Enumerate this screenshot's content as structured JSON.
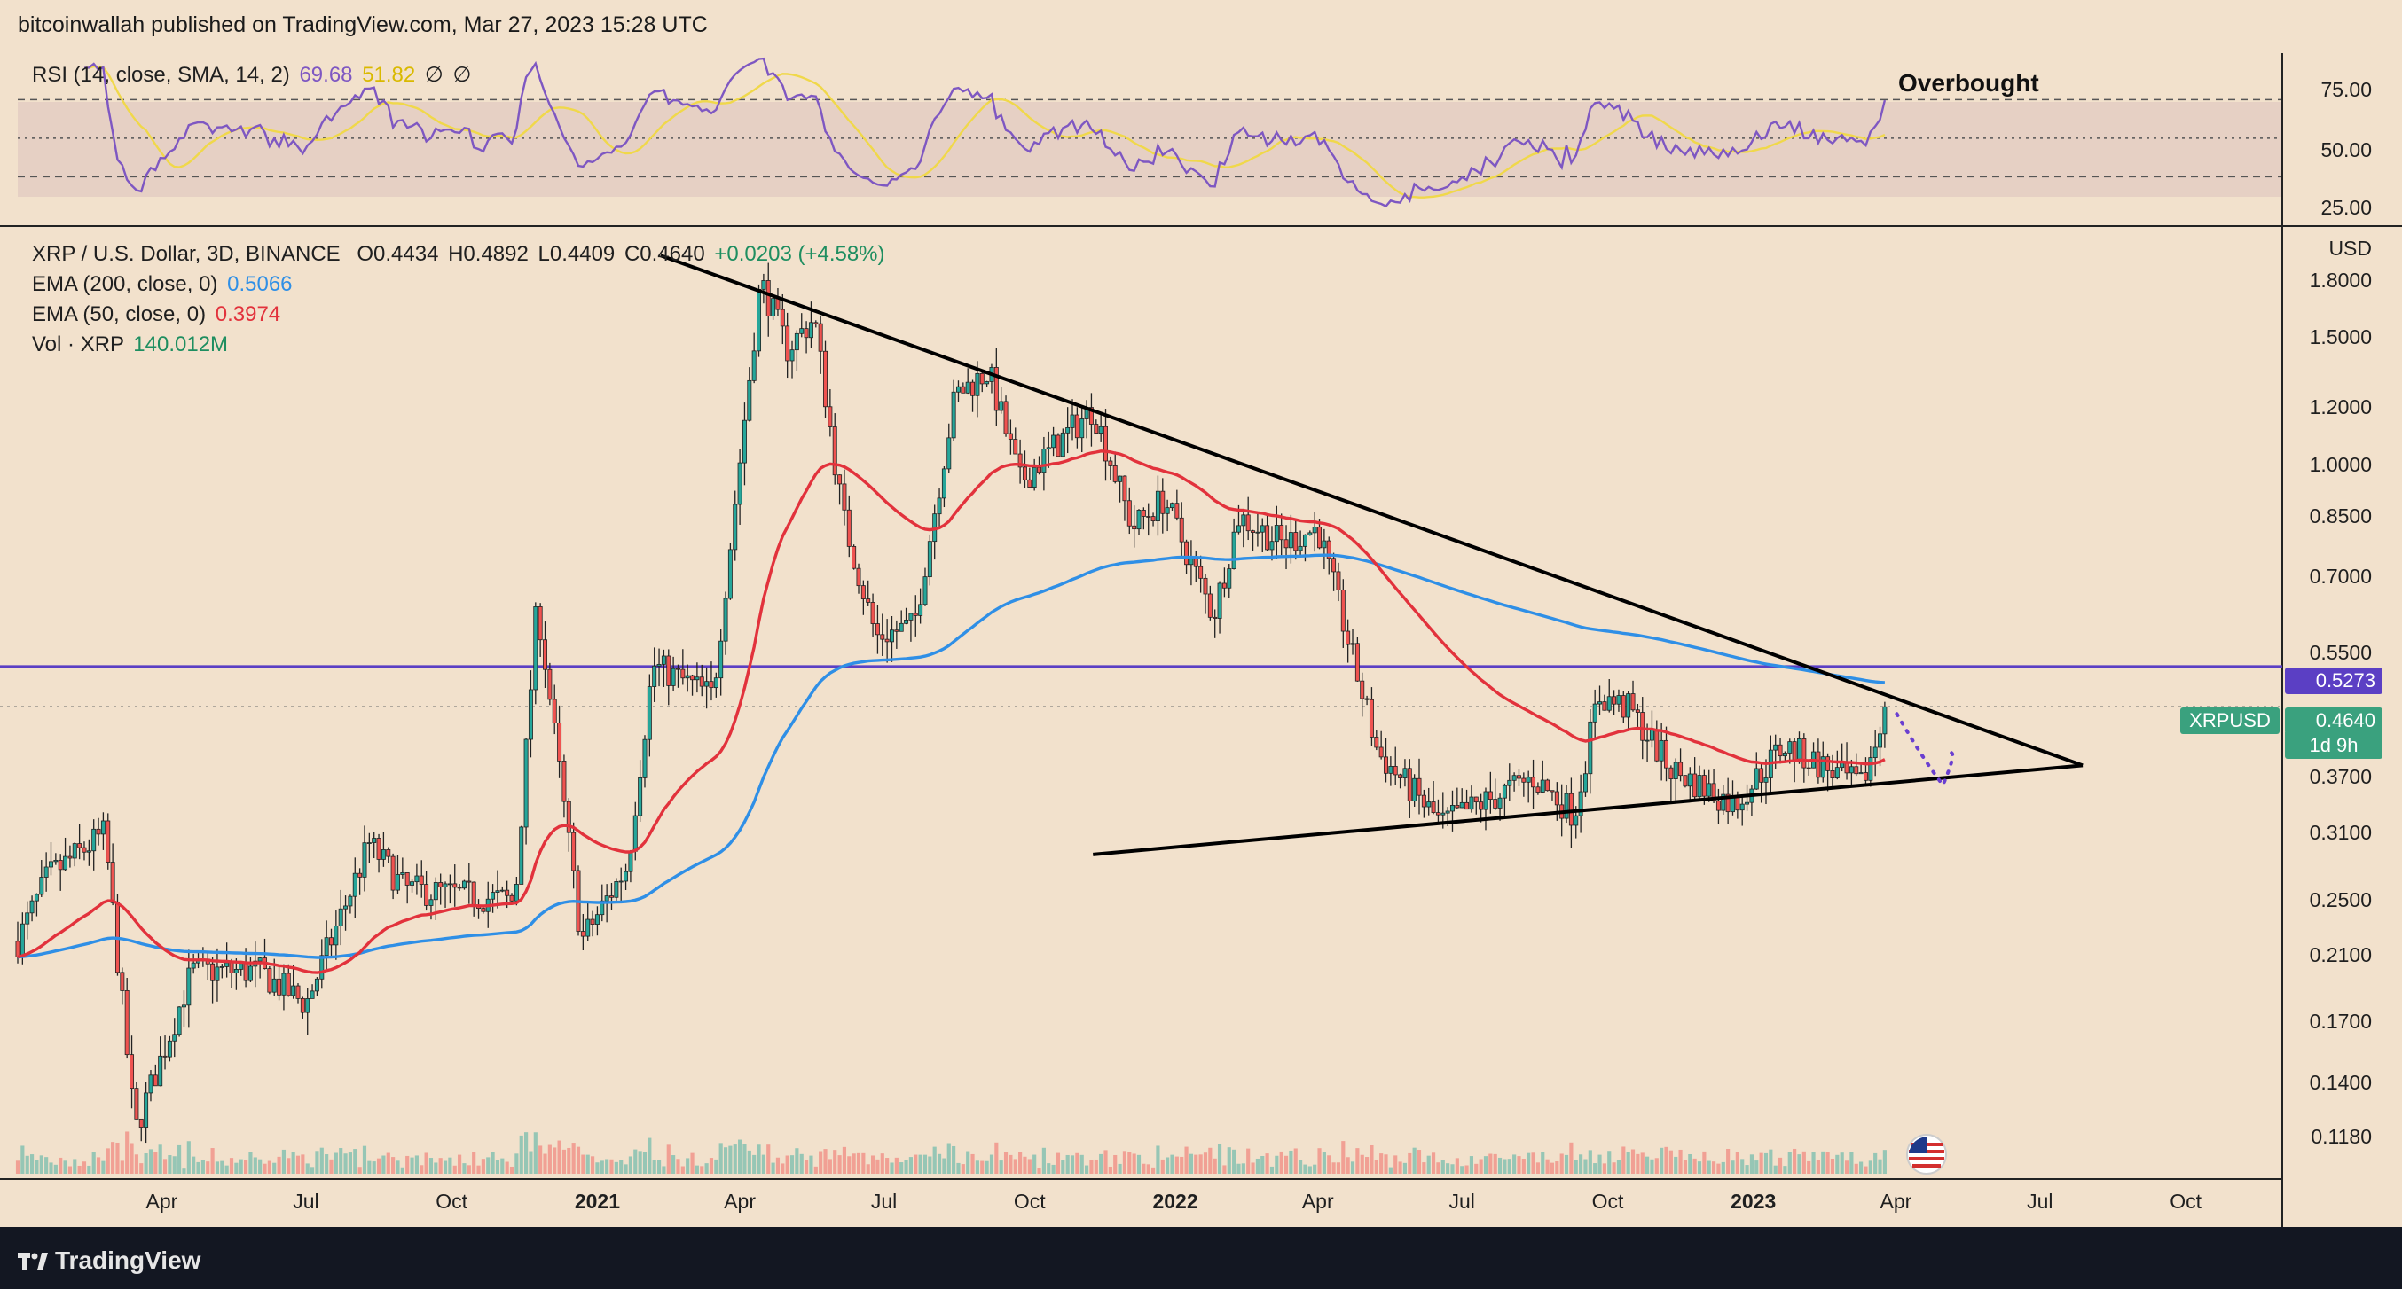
{
  "header": {
    "publisher": "bitcoinwallah published on TradingView.com, Mar 27, 2023 15:28 UTC"
  },
  "rsi_legend": {
    "label": "RSI (14, close, SMA, 14, 2)",
    "rsi": "69.68",
    "sma": "51.82",
    "sym1": "∅",
    "sym2": "∅"
  },
  "main_legend": {
    "pair": "XRP / U.S. Dollar, 3D, BINANCE",
    "open": "O0.4434",
    "high": "H0.4892",
    "low": "L0.4409",
    "close": "C0.4640",
    "change": "+0.0203 (+4.58%)"
  },
  "ema200": {
    "label": "EMA (200, close, 0)",
    "value": "0.5066"
  },
  "ema50": {
    "label": "EMA (50, close, 0)",
    "value": "0.3974"
  },
  "vol": {
    "label": "Vol · XRP",
    "value": "140.012M"
  },
  "annotation": {
    "overbought": "Overbought"
  },
  "rsi_axis": [
    "75.00",
    "50.00",
    "25.00"
  ],
  "price_axis": {
    "currency": "USD",
    "ticks": [
      "1.8000",
      "1.5000",
      "1.2000",
      "1.0000",
      "0.8500",
      "0.7000",
      "0.5500",
      "0.3700",
      "0.3100",
      "0.2500",
      "0.2100",
      "0.1700",
      "0.1400",
      "0.1180"
    ]
  },
  "tags": {
    "level": "0.5273",
    "symbol": "XRPUSD",
    "price": "0.4640",
    "countdown": "1d 9h"
  },
  "time_axis": [
    {
      "label": "Apr",
      "year": false
    },
    {
      "label": "Jul",
      "year": false
    },
    {
      "label": "Oct",
      "year": false
    },
    {
      "label": "2021",
      "year": true
    },
    {
      "label": "Apr",
      "year": false
    },
    {
      "label": "Jul",
      "year": false
    },
    {
      "label": "Oct",
      "year": false
    },
    {
      "label": "2022",
      "year": true
    },
    {
      "label": "Apr",
      "year": false
    },
    {
      "label": "Jul",
      "year": false
    },
    {
      "label": "Oct",
      "year": false
    },
    {
      "label": "2023",
      "year": true
    },
    {
      "label": "Apr",
      "year": false
    },
    {
      "label": "Jul",
      "year": false
    },
    {
      "label": "Oct",
      "year": false
    }
  ],
  "footer": {
    "brand": "TradingView"
  },
  "colors": {
    "background": "#f2e1cc",
    "up": "#26a69a",
    "down": "#ef5350",
    "ema200": "#2f8fe6",
    "ema50": "#e2323c",
    "rsi": "#7e57c2",
    "rsi_sma": "#f0d84a",
    "level": "#5b3fc4",
    "trendline": "#000000"
  },
  "chart_data": {
    "type": "candlestick",
    "title": "XRP / U.S. Dollar, 3D, BINANCE",
    "y_scale": "log",
    "ylim": [
      0.105,
      2.1
    ],
    "x_range": [
      "2020-01-01",
      "2023-12-01"
    ],
    "key_points": [
      {
        "x": "2020-01-01",
        "y": 0.22
      },
      {
        "x": "2020-01-20",
        "y": 0.27
      },
      {
        "x": "2020-02-25",
        "y": 0.31
      },
      {
        "x": "2020-03-15",
        "y": 0.12
      },
      {
        "x": "2020-04-20",
        "y": 0.2
      },
      {
        "x": "2020-06-01",
        "y": 0.2
      },
      {
        "x": "2020-07-01",
        "y": 0.18
      },
      {
        "x": "2020-08-10",
        "y": 0.3
      },
      {
        "x": "2020-09-01",
        "y": 0.26
      },
      {
        "x": "2020-11-10",
        "y": 0.25
      },
      {
        "x": "2020-11-24",
        "y": 0.65
      },
      {
        "x": "2020-12-22",
        "y": 0.22
      },
      {
        "x": "2021-01-20",
        "y": 0.28
      },
      {
        "x": "2021-02-05",
        "y": 0.53
      },
      {
        "x": "2021-03-15",
        "y": 0.48
      },
      {
        "x": "2021-04-14",
        "y": 1.8
      },
      {
        "x": "2021-05-01",
        "y": 1.45
      },
      {
        "x": "2021-05-18",
        "y": 1.6
      },
      {
        "x": "2021-06-05",
        "y": 0.85
      },
      {
        "x": "2021-06-26",
        "y": 0.58
      },
      {
        "x": "2021-07-20",
        "y": 0.6
      },
      {
        "x": "2021-08-15",
        "y": 1.25
      },
      {
        "x": "2021-09-05",
        "y": 1.35
      },
      {
        "x": "2021-09-25",
        "y": 0.95
      },
      {
        "x": "2021-11-10",
        "y": 1.2
      },
      {
        "x": "2021-12-05",
        "y": 0.82
      },
      {
        "x": "2021-12-25",
        "y": 0.9
      },
      {
        "x": "2022-01-25",
        "y": 0.62
      },
      {
        "x": "2022-02-10",
        "y": 0.85
      },
      {
        "x": "2022-03-10",
        "y": 0.78
      },
      {
        "x": "2022-04-01",
        "y": 0.82
      },
      {
        "x": "2022-05-09",
        "y": 0.4
      },
      {
        "x": "2022-06-18",
        "y": 0.32
      },
      {
        "x": "2022-08-15",
        "y": 0.37
      },
      {
        "x": "2022-09-10",
        "y": 0.33
      },
      {
        "x": "2022-09-25",
        "y": 0.48
      },
      {
        "x": "2022-10-15",
        "y": 0.46
      },
      {
        "x": "2022-11-10",
        "y": 0.38
      },
      {
        "x": "2022-12-20",
        "y": 0.34
      },
      {
        "x": "2023-01-20",
        "y": 0.41
      },
      {
        "x": "2023-03-10",
        "y": 0.36
      },
      {
        "x": "2023-03-27",
        "y": 0.464
      }
    ],
    "reference_levels": [
      {
        "label": "0.5273",
        "y": 0.5273
      }
    ],
    "trendlines": [
      {
        "name": "descending resistance",
        "from": {
          "x": "2021-02-10",
          "y": 1.95
        },
        "to": {
          "x": "2023-07-28",
          "y": 0.385
        }
      },
      {
        "name": "ascending support",
        "from": {
          "x": "2021-11-10",
          "y": 0.29
        },
        "to": {
          "x": "2023-07-28",
          "y": 0.385
        }
      }
    ],
    "rsi": {
      "period": 14,
      "value": 69.68,
      "sma": 51.82,
      "levels": [
        70,
        50,
        30
      ],
      "ylim": [
        15,
        95
      ]
    }
  }
}
